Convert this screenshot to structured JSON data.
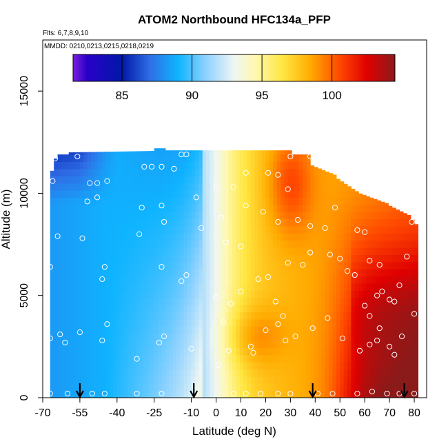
{
  "chart_data": {
    "type": "heatmap",
    "title": "ATOM2 Northbound HFC134a_PFP",
    "flights_note": "Flts: 6,7,8,9,10",
    "dates_note": "MMDD: 0210,0213,0215,0218,0219",
    "xlabel": "Latitude (deg N)",
    "ylabel": "Altitude (m)",
    "xlim": [
      -70,
      85
    ],
    "ylim": [
      0,
      17500
    ],
    "xticks": [
      -70,
      -55,
      -40,
      -25,
      -10,
      0,
      10,
      20,
      30,
      40,
      50,
      60,
      70,
      80
    ],
    "xtick_labels": [
      "-70",
      "-55",
      "-40",
      "-25",
      "-10",
      "0",
      "10",
      "20",
      "30",
      "40",
      "50",
      "60",
      "70",
      "80"
    ],
    "yticks": [
      0,
      5000,
      10000,
      15000
    ],
    "ytick_labels": [
      "0",
      "5000",
      "10000",
      "15000"
    ],
    "colorbar": {
      "min": 81.5,
      "max": 104.5,
      "ticks": [
        85,
        90,
        95,
        100
      ],
      "tick_labels": [
        "85",
        "90",
        "95",
        "100"
      ],
      "stops": [
        {
          "v": 81.5,
          "color": "#7b1fe0"
        },
        {
          "v": 82.5,
          "color": "#2a00c8"
        },
        {
          "v": 85,
          "color": "#0018a8"
        },
        {
          "v": 87,
          "color": "#2f6ee6"
        },
        {
          "v": 89,
          "color": "#0fb4ff"
        },
        {
          "v": 91,
          "color": "#8fd2ff"
        },
        {
          "v": 93,
          "color": "#eef6f4"
        },
        {
          "v": 94.5,
          "color": "#fff8b0"
        },
        {
          "v": 96.5,
          "color": "#ffe640"
        },
        {
          "v": 98.5,
          "color": "#ffaa00"
        },
        {
          "v": 100.5,
          "color": "#ff4a00"
        },
        {
          "v": 102.5,
          "color": "#e00000"
        },
        {
          "v": 104.5,
          "color": "#8b1a1a"
        }
      ]
    },
    "arrow_latitudes": [
      -55,
      -9,
      39,
      76
    ],
    "observations": [
      {
        "lat": -67,
        "alt": 200
      },
      {
        "lat": -60,
        "alt": 200
      },
      {
        "lat": -50,
        "alt": 200
      },
      {
        "lat": -45,
        "alt": 200
      },
      {
        "lat": -32,
        "alt": 200
      },
      {
        "lat": -22,
        "alt": 200
      },
      {
        "lat": -8,
        "alt": 200
      },
      {
        "lat": 7,
        "alt": 200
      },
      {
        "lat": 12,
        "alt": 200
      },
      {
        "lat": 18,
        "alt": 200
      },
      {
        "lat": 25,
        "alt": 200
      },
      {
        "lat": 30,
        "alt": 200
      },
      {
        "lat": 41,
        "alt": 200
      },
      {
        "lat": 47,
        "alt": 200
      },
      {
        "lat": 57,
        "alt": 200
      },
      {
        "lat": 63,
        "alt": 300
      },
      {
        "lat": 69,
        "alt": 200
      },
      {
        "lat": 74,
        "alt": 200
      },
      {
        "lat": 80,
        "alt": 200
      },
      {
        "lat": -61,
        "alt": 2700
      },
      {
        "lat": -67,
        "alt": 2900
      },
      {
        "lat": -63,
        "alt": 3100
      },
      {
        "lat": -55,
        "alt": 3200
      },
      {
        "lat": -46,
        "alt": 2800
      },
      {
        "lat": -44,
        "alt": 3600
      },
      {
        "lat": -32,
        "alt": 1900
      },
      {
        "lat": -23,
        "alt": 2700
      },
      {
        "lat": -21,
        "alt": 3000
      },
      {
        "lat": -10,
        "alt": 2400
      },
      {
        "lat": 1,
        "alt": 1600
      },
      {
        "lat": 5,
        "alt": 2300
      },
      {
        "lat": 14,
        "alt": 2500
      },
      {
        "lat": 15,
        "alt": 2200
      },
      {
        "lat": 20,
        "alt": 3300
      },
      {
        "lat": 25,
        "alt": 3600
      },
      {
        "lat": 28,
        "alt": 2800
      },
      {
        "lat": 32,
        "alt": 3000
      },
      {
        "lat": 39,
        "alt": 3400
      },
      {
        "lat": 45,
        "alt": 3900
      },
      {
        "lat": 51,
        "alt": 2900
      },
      {
        "lat": 58,
        "alt": 2300
      },
      {
        "lat": 62,
        "alt": 2600
      },
      {
        "lat": 65,
        "alt": 2800
      },
      {
        "lat": 70,
        "alt": 2500
      },
      {
        "lat": 72,
        "alt": 2100
      },
      {
        "lat": 66,
        "alt": 3400
      },
      {
        "lat": 62,
        "alt": 4000
      },
      {
        "lat": 75,
        "alt": 3000
      },
      {
        "lat": 80,
        "alt": 4100
      },
      {
        "lat": 72,
        "alt": 4700
      },
      {
        "lat": -67,
        "alt": 6400
      },
      {
        "lat": -46,
        "alt": 5800
      },
      {
        "lat": -45,
        "alt": 6400
      },
      {
        "lat": -22,
        "alt": 6400
      },
      {
        "lat": -14,
        "alt": 5700
      },
      {
        "lat": -12,
        "alt": 6000
      },
      {
        "lat": 0,
        "alt": 4900
      },
      {
        "lat": 3,
        "alt": 3700
      },
      {
        "lat": 6,
        "alt": 4600
      },
      {
        "lat": 10,
        "alt": 5200
      },
      {
        "lat": 17,
        "alt": 5800
      },
      {
        "lat": 21,
        "alt": 5900
      },
      {
        "lat": 24,
        "alt": 4700
      },
      {
        "lat": 27,
        "alt": 4000
      },
      {
        "lat": 29,
        "alt": 6600
      },
      {
        "lat": 35,
        "alt": 6500
      },
      {
        "lat": 38,
        "alt": 7100
      },
      {
        "lat": 46,
        "alt": 7000
      },
      {
        "lat": 50,
        "alt": 6800
      },
      {
        "lat": 53,
        "alt": 6200
      },
      {
        "lat": 56,
        "alt": 6000
      },
      {
        "lat": 62,
        "alt": 6700
      },
      {
        "lat": 66,
        "alt": 6500
      },
      {
        "lat": 65,
        "alt": 5000
      },
      {
        "lat": 67,
        "alt": 5200
      },
      {
        "lat": 70,
        "alt": 4800
      },
      {
        "lat": 74,
        "alt": 5500
      },
      {
        "lat": 77,
        "alt": 6900
      },
      {
        "lat": 60,
        "alt": 4500
      },
      {
        "lat": -64,
        "alt": 7900
      },
      {
        "lat": -54,
        "alt": 7800
      },
      {
        "lat": -31,
        "alt": 8000
      },
      {
        "lat": -21,
        "alt": 8600
      },
      {
        "lat": -6,
        "alt": 8300
      },
      {
        "lat": 2,
        "alt": 8800
      },
      {
        "lat": 4,
        "alt": 7600
      },
      {
        "lat": 10,
        "alt": 7400
      },
      {
        "lat": 12,
        "alt": 9400
      },
      {
        "lat": 19,
        "alt": 9100
      },
      {
        "lat": 25,
        "alt": 8600
      },
      {
        "lat": 33,
        "alt": 8700
      },
      {
        "lat": 38,
        "alt": 8400
      },
      {
        "lat": 44,
        "alt": 8300
      },
      {
        "lat": 48,
        "alt": 9300
      },
      {
        "lat": 57,
        "alt": 8200
      },
      {
        "lat": 60,
        "alt": 8100
      },
      {
        "lat": 79,
        "alt": 8600
      },
      {
        "lat": -52,
        "alt": 9600
      },
      {
        "lat": -48,
        "alt": 9800
      },
      {
        "lat": -30,
        "alt": 9300
      },
      {
        "lat": -22,
        "alt": 9400
      },
      {
        "lat": -8,
        "alt": 9800
      },
      {
        "lat": 0,
        "alt": 10300
      },
      {
        "lat": 7,
        "alt": 10300
      },
      {
        "lat": 29,
        "alt": 10200
      },
      {
        "lat": -66,
        "alt": 10600
      },
      {
        "lat": -51,
        "alt": 10500
      },
      {
        "lat": -48,
        "alt": 10500
      },
      {
        "lat": -44,
        "alt": 10600
      },
      {
        "lat": -29,
        "alt": 11300
      },
      {
        "lat": -26,
        "alt": 11300
      },
      {
        "lat": -22,
        "alt": 11300
      },
      {
        "lat": -17,
        "alt": 11200
      },
      {
        "lat": -65,
        "alt": 11700
      },
      {
        "lat": -56,
        "alt": 11800
      },
      {
        "lat": -14,
        "alt": 11900
      },
      {
        "lat": -12,
        "alt": 11900
      },
      {
        "lat": 12,
        "alt": 11000
      },
      {
        "lat": 21,
        "alt": 11000
      },
      {
        "lat": 25,
        "alt": 10900
      },
      {
        "lat": 30,
        "alt": 11800
      },
      {
        "lat": 38,
        "alt": 11800
      }
    ]
  }
}
